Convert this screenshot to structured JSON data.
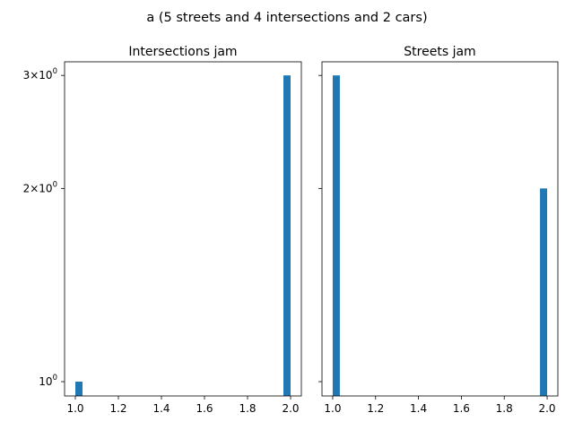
{
  "figure": {
    "suptitle": "a (5 streets and 4 intersections and 2 cars)"
  },
  "chart_data": [
    {
      "type": "bar",
      "title": "Intersections jam",
      "yscale": "log",
      "sharey": true,
      "xlim": [
        0.95,
        2.05
      ],
      "ylim": [
        0.95,
        3.15
      ],
      "x_ticks": [
        1.0,
        1.2,
        1.4,
        1.6,
        1.8,
        2.0
      ],
      "x_tick_labels": [
        "1.0",
        "1.2",
        "1.4",
        "1.6",
        "1.8",
        "2.0"
      ],
      "y_ticks": [
        1,
        2,
        3
      ],
      "y_tick_labels": [
        "10",
        "2×10",
        "3×10"
      ],
      "bin_width": 0.0333,
      "bins": [
        {
          "left": 1.0,
          "value": 1
        },
        {
          "left": 1.9667,
          "value": 3
        }
      ],
      "color": "#1f77b4"
    },
    {
      "type": "bar",
      "title": "Streets jam",
      "yscale": "log",
      "sharey": true,
      "xlim": [
        0.95,
        2.05
      ],
      "ylim": [
        0.95,
        3.15
      ],
      "x_ticks": [
        1.0,
        1.2,
        1.4,
        1.6,
        1.8,
        2.0
      ],
      "x_tick_labels": [
        "1.0",
        "1.2",
        "1.4",
        "1.6",
        "1.8",
        "2.0"
      ],
      "y_ticks": [
        1,
        2,
        3
      ],
      "y_tick_labels": [],
      "bin_width": 0.0333,
      "bins": [
        {
          "left": 1.0,
          "value": 3
        },
        {
          "left": 1.9667,
          "value": 2
        }
      ],
      "color": "#1f77b4"
    }
  ]
}
